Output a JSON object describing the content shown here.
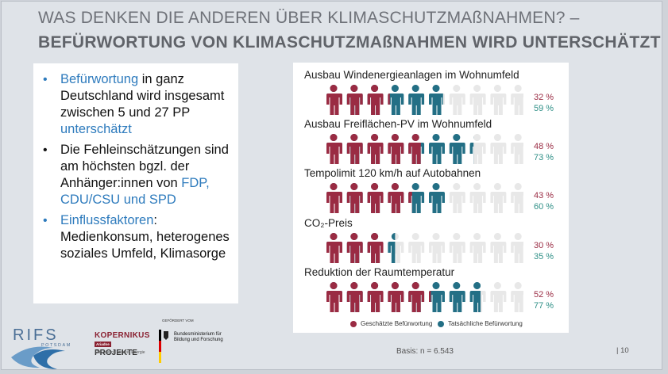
{
  "slide": {
    "title_line1": "WAS DENKEN DIE ANDEREN ÜBER KLIMASCHUTZMAßNAHMEN? –",
    "title_line2": "BEFÜRWORTUNG VON KLIMASCHUTZMAßNAHMEN WIRD UNTERSCHÄTZT",
    "basis": "Basis: n = 6.543",
    "page_number": "| 10"
  },
  "bullets": [
    {
      "parts": [
        {
          "text": "Befürwortung",
          "color": "blue"
        },
        {
          "text": " in ganz Deutschland wird insgesamt zwischen 5 und 27 PP ",
          "color": "black"
        },
        {
          "text": "unterschätzt",
          "color": "blue"
        }
      ],
      "dot": "blue"
    },
    {
      "parts": [
        {
          "text": "Die Fehleinschätzungen sind am höchsten bgzl. der Anhänger:innen von ",
          "color": "black"
        },
        {
          "text": "FDP, CDU/CSU und SPD",
          "color": "blue"
        }
      ],
      "dot": "black"
    },
    {
      "parts": [
        {
          "text": "Einflussfaktoren",
          "color": "blue"
        },
        {
          "text": ": Medienkonsum, heterogenes soziales Umfeld, Klimasorge",
          "color": "black"
        }
      ],
      "dot": "blue"
    }
  ],
  "colors": {
    "estimated": "#9a2b43",
    "actual": "#236f85",
    "remaining": "#e8e8e8",
    "accent_blue": "#2e7bbd"
  },
  "chart_data": {
    "type": "pictogram",
    "icon": "person-icon",
    "icons_per_row": 10,
    "series": [
      {
        "name": "Geschätzte Befürwortung",
        "values": [
          32,
          48,
          43,
          30,
          52
        ]
      },
      {
        "name": "Tatsächliche Befürwortung",
        "values": [
          59,
          73,
          60,
          35,
          77
        ]
      }
    ],
    "categories": [
      "Ausbau Windenergieanlagen im Wohnumfeld",
      "Ausbau Freiflächen-PV im Wohnumfeld",
      "Tempolimit 120 km/h auf Autobahnen",
      "CO₂-Preis",
      "Reduktion der Raumtemperatur"
    ],
    "labels_estimated": [
      "32 %",
      "48 %",
      "43 %",
      "30 %",
      "52 %"
    ],
    "labels_actual": [
      "59 %",
      "73 %",
      "60 %",
      "35 %",
      "77 %"
    ],
    "legend": "bottom"
  },
  "logos": {
    "rifs": {
      "name": "RIFS",
      "sub": "POTSDAM"
    },
    "kopernikus": {
      "title": "KOPERNIKUS",
      "sub_title": "PROJEKTE",
      "tag": "Ariadne",
      "claim": "Die Zukunft unserer Energie"
    },
    "bmbf": {
      "header": "GEFÖRDERT VOM",
      "text": "Bundesministerium für Bildung und Forschung"
    }
  }
}
